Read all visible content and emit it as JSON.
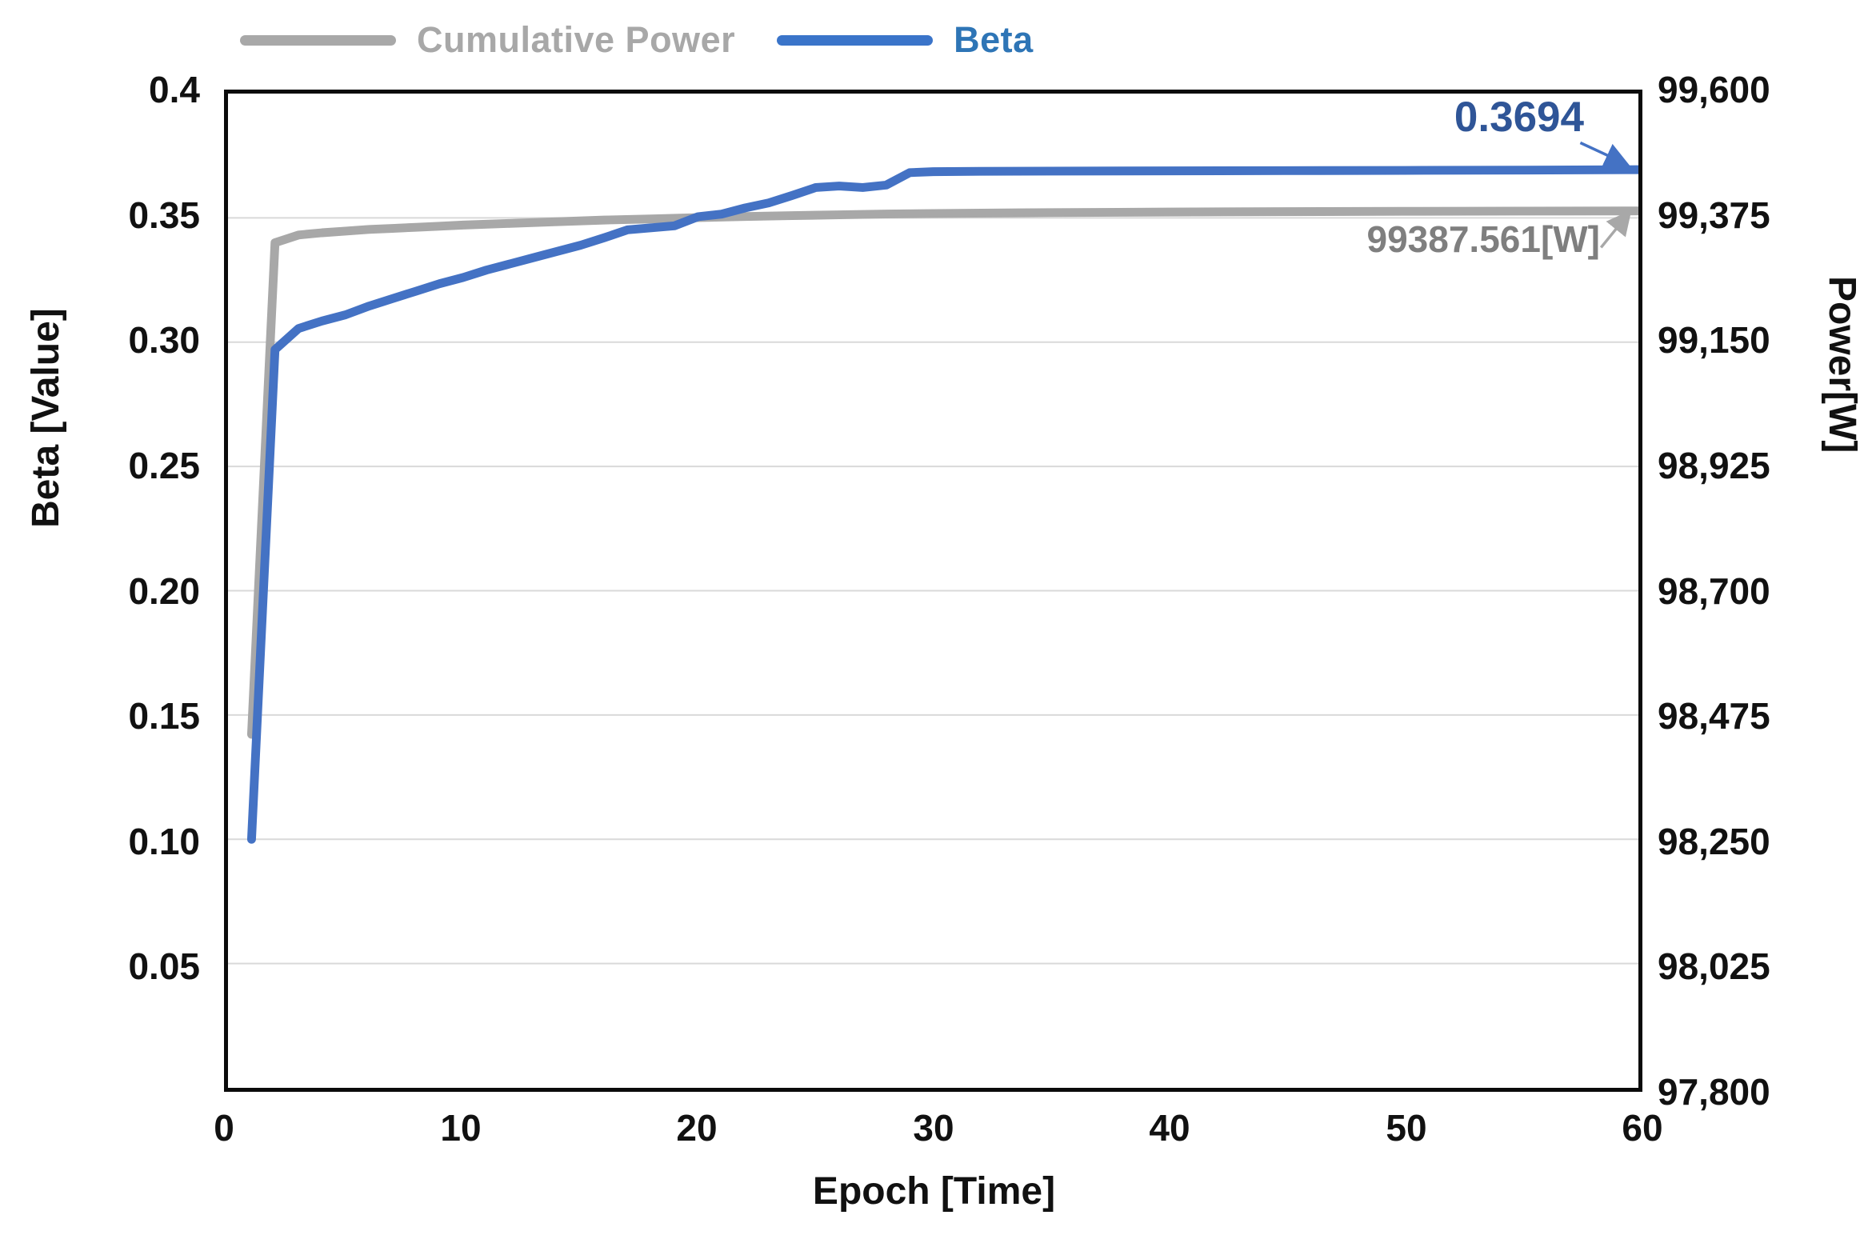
{
  "legend": {
    "items": [
      {
        "label": "Cumulative Power",
        "text_color": "#A8A8A8",
        "swatch_color": "#A8A8A8"
      },
      {
        "label": "Beta",
        "text_color": "#2E75B6",
        "swatch_color": "#3A74C9"
      }
    ]
  },
  "chart_data": {
    "type": "line",
    "title": "",
    "grid": "horizontal",
    "grid_color": "#D9D9D9",
    "legend_position": "top",
    "x_axis": {
      "label": "Epoch [Time]",
      "min": 0,
      "max": 60,
      "tick_values": [
        0,
        10,
        20,
        30,
        40,
        50,
        60
      ],
      "tick_labels": [
        "0",
        "10",
        "20",
        "30",
        "40",
        "50",
        "60"
      ]
    },
    "left_axis": {
      "label": "Beta [Value]",
      "min": 0,
      "max": 0.4,
      "tick_values": [
        0.4,
        0.35,
        0.3,
        0.25,
        0.2,
        0.15,
        0.1,
        0.05
      ],
      "tick_labels": [
        "0.4",
        "0.35",
        "0.30",
        "0.25",
        "0.20",
        "0.15",
        "0.10",
        "0.05"
      ]
    },
    "right_axis": {
      "label": "Power[W]",
      "min": 97800,
      "max": 99600,
      "tick_values": [
        99600,
        99375,
        99150,
        98925,
        98700,
        98475,
        98250,
        98025,
        97800
      ],
      "tick_labels": [
        "99,600",
        "99,375",
        "99,150",
        "98,925",
        "98,700",
        "98,475",
        "98,250",
        "98,025",
        "97,800"
      ]
    },
    "series": [
      {
        "name": "Cumulative Power",
        "axis": "right",
        "color": "#A8A8A8",
        "stroke_width": 11,
        "points": [
          [
            1,
            98440
          ],
          [
            2,
            99330
          ],
          [
            3,
            99344
          ],
          [
            4,
            99348
          ],
          [
            5,
            99351
          ],
          [
            6,
            99354
          ],
          [
            7,
            99356
          ],
          [
            8,
            99358
          ],
          [
            9,
            99360
          ],
          [
            10,
            99362
          ],
          [
            12,
            99365
          ],
          [
            14,
            99368
          ],
          [
            16,
            99371
          ],
          [
            18,
            99373
          ],
          [
            20,
            99375.5
          ],
          [
            22,
            99377.5
          ],
          [
            24,
            99379
          ],
          [
            26,
            99380.5
          ],
          [
            28,
            99382
          ],
          [
            30,
            99383
          ],
          [
            35,
            99384.5
          ],
          [
            40,
            99385.5
          ],
          [
            45,
            99386.2
          ],
          [
            50,
            99386.8
          ],
          [
            55,
            99387.2
          ],
          [
            60,
            99387.561
          ]
        ]
      },
      {
        "name": "Beta",
        "axis": "left",
        "color": "#4472C4",
        "stroke_width": 11,
        "points": [
          [
            1,
            0.1
          ],
          [
            2,
            0.297
          ],
          [
            3,
            0.3055
          ],
          [
            4,
            0.3085
          ],
          [
            5,
            0.311
          ],
          [
            6,
            0.3145
          ],
          [
            7,
            0.3175
          ],
          [
            8,
            0.3205
          ],
          [
            9,
            0.3235
          ],
          [
            10,
            0.326
          ],
          [
            11,
            0.329
          ],
          [
            12,
            0.3315
          ],
          [
            13,
            0.334
          ],
          [
            14,
            0.3365
          ],
          [
            15,
            0.339
          ],
          [
            16,
            0.342
          ],
          [
            17,
            0.3452
          ],
          [
            18,
            0.346
          ],
          [
            19,
            0.3468
          ],
          [
            20,
            0.3505
          ],
          [
            21,
            0.3515
          ],
          [
            22,
            0.354
          ],
          [
            23,
            0.356
          ],
          [
            24,
            0.359
          ],
          [
            25,
            0.3622
          ],
          [
            26,
            0.3628
          ],
          [
            27,
            0.3622
          ],
          [
            28,
            0.3632
          ],
          [
            29,
            0.3682
          ],
          [
            30,
            0.3686
          ],
          [
            32,
            0.3687
          ],
          [
            35,
            0.3688
          ],
          [
            40,
            0.3689
          ],
          [
            45,
            0.369
          ],
          [
            50,
            0.3691
          ],
          [
            55,
            0.3692
          ],
          [
            60,
            0.3694
          ]
        ]
      }
    ],
    "annotations": [
      {
        "text": "0.3694",
        "series": "Beta",
        "color": "#2F5597"
      },
      {
        "text": "99387.561[W]",
        "series": "Cumulative Power",
        "color": "#7F7F7F"
      }
    ]
  }
}
